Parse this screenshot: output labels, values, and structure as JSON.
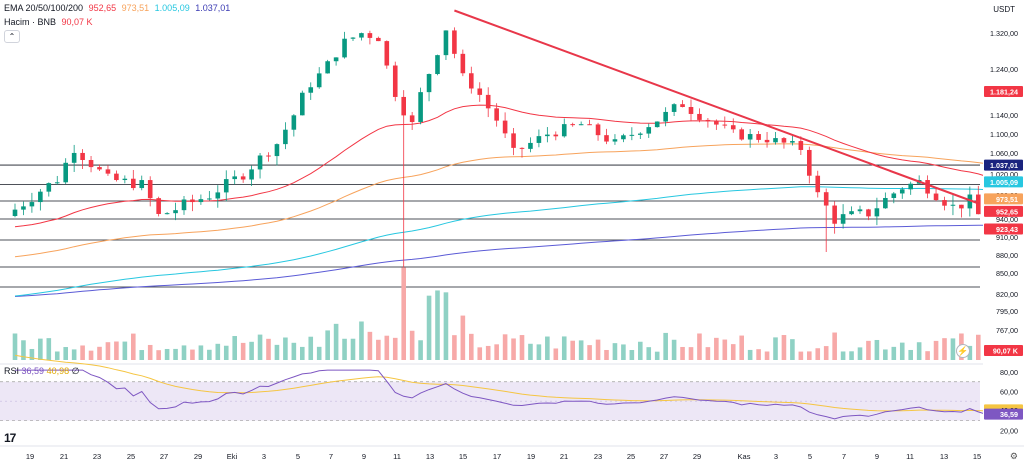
{
  "legend": {
    "ema_title": "EMA 20/50/100/200",
    "ema20": "952,65",
    "ema50": "973,51",
    "ema100": "1.005,09",
    "ema200": "1.037,01",
    "volume_title": "Hacim · BNB",
    "volume_value": "90,07 K",
    "rsi_title": "RSI",
    "rsi_value": "36,59",
    "rsi_ma": "40,98",
    "rsi_na": "∅",
    "collapse": "⌃"
  },
  "currency": "USDT",
  "logo": "17",
  "colors": {
    "up": "#089981",
    "down": "#f23645",
    "ema20": "#f23645",
    "ema50": "#f7a35c",
    "ema100": "#27c7e0",
    "ema200": "#5b5bd6",
    "trend": "#e8374a",
    "rsi": "#7e57c2",
    "rsi_ma": "#f5c542"
  },
  "chart_data": {
    "type": "candlestick",
    "instrument": "BNB / USDT",
    "price_ticks": [
      "1.320,00",
      "1.240,00",
      "1.180,00",
      "1.140,00",
      "1.100,00",
      "1.060,00",
      "1.020,00",
      "980,00",
      "940,00",
      "910,00",
      "880,00",
      "850,00",
      "820,00",
      "795,00",
      "767,00"
    ],
    "price_ticks_num": [
      1320,
      1240,
      1180,
      1140,
      1100,
      1060,
      1020,
      980,
      940,
      910,
      880,
      850,
      820,
      795,
      767
    ],
    "price_labels": [
      {
        "value": 1181.24,
        "text": "1.181,24",
        "color": "#f23645"
      },
      {
        "value": 1037.01,
        "text": "1.037,01",
        "color": "#1a237e"
      },
      {
        "value": 1005.09,
        "text": "1.005,09",
        "color": "#27c7e0"
      },
      {
        "value": 973.51,
        "text": "973,51",
        "color": "#f7a35c"
      },
      {
        "value": 952.65,
        "text": "952,65",
        "color": "#f23645"
      },
      {
        "value": 923.43,
        "text": "923,43",
        "color": "#f23645"
      }
    ],
    "volume_label": "90,07 K",
    "rsi_ticks": [
      "80,00",
      "60,00",
      "40,00",
      "20,00"
    ],
    "rsi_ticks_num": [
      80,
      60,
      40,
      20
    ],
    "rsi_labels": [
      {
        "value": 40.98,
        "text": "40,98",
        "color": "#f5c542"
      },
      {
        "value": 36.59,
        "text": "36,59",
        "color": "#7e57c2"
      }
    ],
    "rsi_band": [
      70,
      30
    ],
    "x_ticks": [
      "19",
      "21",
      "23",
      "25",
      "27",
      "29",
      "Eki",
      "3",
      "5",
      "7",
      "9",
      "11",
      "13",
      "15",
      "17",
      "19",
      "21",
      "23",
      "25",
      "27",
      "29",
      "Kas",
      "3",
      "5",
      "7",
      "9",
      "11",
      "13",
      "15"
    ],
    "horizontal_levels": [
      1037,
      1000,
      970,
      940,
      905,
      860,
      830
    ],
    "trendline": [
      {
        "date": "Eki 13",
        "price": 1370
      },
      {
        "date": "Kas 15",
        "price": 965
      }
    ],
    "anchors": [
      {
        "date": "Eyl 17",
        "price": 945
      },
      {
        "date": "Eyl 20",
        "price": 1010
      },
      {
        "date": "Eyl 21",
        "price": 1070
      },
      {
        "date": "Eyl 23",
        "price": 1010
      },
      {
        "date": "Eyl 25",
        "price": 1000
      },
      {
        "date": "Eyl 26",
        "price": 945
      },
      {
        "date": "Eyl 29",
        "price": 980
      },
      {
        "date": "Eki 1",
        "price": 1020
      },
      {
        "date": "Eki 3",
        "price": 1080
      },
      {
        "date": "Eki 5",
        "price": 1200
      },
      {
        "date": "Eki 7",
        "price": 1300
      },
      {
        "date": "Eki 8",
        "price": 1320
      },
      {
        "date": "Eki 9",
        "price": 1310
      },
      {
        "date": "Eki 10",
        "price": 1180
      },
      {
        "date": "Eki 11",
        "price": 1120
      },
      {
        "date": "Eki 12",
        "price": 1230
      },
      {
        "date": "Eki 13",
        "price": 1330
      },
      {
        "date": "Eki 14",
        "price": 1220
      },
      {
        "date": "Eki 16",
        "price": 1130
      },
      {
        "date": "Eki 17",
        "price": 1060
      },
      {
        "date": "Eki 19",
        "price": 1100
      },
      {
        "date": "Eki 21",
        "price": 1120
      },
      {
        "date": "Eki 23",
        "price": 1080
      },
      {
        "date": "Eki 25",
        "price": 1120
      },
      {
        "date": "Eki 27",
        "price": 1160
      },
      {
        "date": "Eki 28",
        "price": 1140
      },
      {
        "date": "Eki 30",
        "price": 1100
      },
      {
        "date": "Kas 1",
        "price": 1090
      },
      {
        "date": "Kas 3",
        "price": 1070
      },
      {
        "date": "Kas 4",
        "price": 980
      },
      {
        "date": "Kas 5",
        "price": 940
      },
      {
        "date": "Kas 7",
        "price": 950
      },
      {
        "date": "Kas 9",
        "price": 995
      },
      {
        "date": "Kas 10",
        "price": 1005
      },
      {
        "date": "Kas 12",
        "price": 960
      },
      {
        "date": "Kas 13",
        "price": 970
      },
      {
        "date": "Kas 14",
        "price": 923
      }
    ]
  }
}
